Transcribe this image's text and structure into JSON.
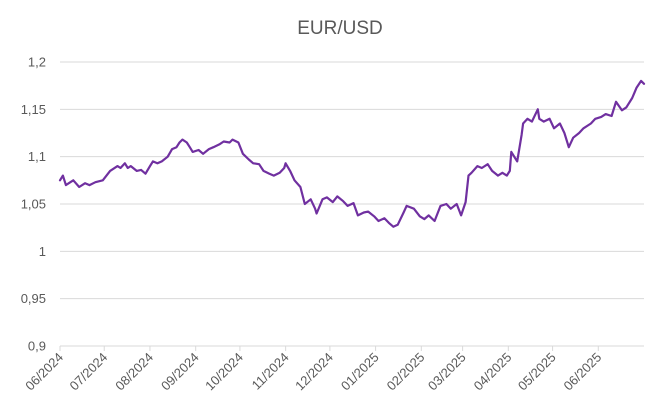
{
  "chart_data": {
    "type": "line",
    "title": "EUR/USD",
    "xlabel": "",
    "ylabel": "",
    "ylim": [
      0.9,
      1.2
    ],
    "yticks": [
      0.9,
      0.95,
      1.0,
      1.05,
      1.1,
      1.15,
      1.2
    ],
    "ytick_labels": [
      "0,9",
      "0,95",
      "1",
      "1,05",
      "1,1",
      "1,15",
      "1,2"
    ],
    "xticks": [
      "2024-06-01",
      "2024-07-01",
      "2024-08-01",
      "2024-09-01",
      "2024-10-01",
      "2024-11-01",
      "2024-12-01",
      "2025-01-01",
      "2025-02-01",
      "2025-03-01",
      "2025-04-01",
      "2025-05-01",
      "2025-06-01"
    ],
    "xtick_labels": [
      "06/2024",
      "07/2024",
      "08/2024",
      "09/2024",
      "10/2024",
      "11/2024",
      "12/2024",
      "01/2025",
      "02/2025",
      "03/2025",
      "04/2025",
      "05/2025",
      "06/2025"
    ],
    "grid": true,
    "legend": "none",
    "color": "#7030a0",
    "x": [
      "2024-06-01",
      "2024-06-03",
      "2024-06-05",
      "2024-06-10",
      "2024-06-14",
      "2024-06-18",
      "2024-06-21",
      "2024-06-25",
      "2024-06-30",
      "2024-07-05",
      "2024-07-10",
      "2024-07-12",
      "2024-07-15",
      "2024-07-17",
      "2024-07-19",
      "2024-07-23",
      "2024-07-26",
      "2024-07-29",
      "2024-08-01",
      "2024-08-03",
      "2024-08-06",
      "2024-08-09",
      "2024-08-13",
      "2024-08-16",
      "2024-08-19",
      "2024-08-21",
      "2024-08-23",
      "2024-08-26",
      "2024-08-28",
      "2024-08-30",
      "2024-09-03",
      "2024-09-06",
      "2024-09-10",
      "2024-09-13",
      "2024-09-17",
      "2024-09-20",
      "2024-09-24",
      "2024-09-26",
      "2024-09-30",
      "2024-10-03",
      "2024-10-07",
      "2024-10-10",
      "2024-10-14",
      "2024-10-17",
      "2024-10-21",
      "2024-10-24",
      "2024-10-28",
      "2024-10-31",
      "2024-11-01",
      "2024-11-04",
      "2024-11-07",
      "2024-11-11",
      "2024-11-14",
      "2024-11-18",
      "2024-11-21",
      "2024-11-22",
      "2024-11-26",
      "2024-11-29",
      "2024-12-03",
      "2024-12-06",
      "2024-12-10",
      "2024-12-13",
      "2024-12-17",
      "2024-12-20",
      "2024-12-24",
      "2024-12-27",
      "2024-12-31",
      "2025-01-03",
      "2025-01-07",
      "2025-01-10",
      "2025-01-13",
      "2025-01-16",
      "2025-01-20",
      "2025-01-22",
      "2025-01-27",
      "2025-01-31",
      "2025-02-03",
      "2025-02-06",
      "2025-02-10",
      "2025-02-14",
      "2025-02-18",
      "2025-02-21",
      "2025-02-25",
      "2025-02-28",
      "2025-03-03",
      "2025-03-05",
      "2025-03-07",
      "2025-03-11",
      "2025-03-14",
      "2025-03-18",
      "2025-03-21",
      "2025-03-25",
      "2025-03-28",
      "2025-03-31",
      "2025-04-02",
      "2025-04-03",
      "2025-04-07",
      "2025-04-10",
      "2025-04-11",
      "2025-04-14",
      "2025-04-17",
      "2025-04-21",
      "2025-04-22",
      "2025-04-25",
      "2025-04-29",
      "2025-05-02",
      "2025-05-06",
      "2025-05-09",
      "2025-05-12",
      "2025-05-15",
      "2025-05-19",
      "2025-05-22",
      "2025-05-27",
      "2025-05-30",
      "2025-06-03",
      "2025-06-06",
      "2025-06-10",
      "2025-06-13",
      "2025-06-17",
      "2025-06-20",
      "2025-06-24",
      "2025-06-27",
      "2025-06-30",
      "2025-07-02"
    ],
    "values": [
      1.075,
      1.08,
      1.07,
      1.075,
      1.068,
      1.072,
      1.07,
      1.073,
      1.075,
      1.085,
      1.09,
      1.088,
      1.093,
      1.088,
      1.09,
      1.085,
      1.086,
      1.082,
      1.09,
      1.095,
      1.093,
      1.095,
      1.1,
      1.108,
      1.11,
      1.115,
      1.118,
      1.115,
      1.11,
      1.105,
      1.107,
      1.103,
      1.108,
      1.11,
      1.113,
      1.116,
      1.115,
      1.118,
      1.115,
      1.103,
      1.097,
      1.093,
      1.092,
      1.085,
      1.082,
      1.08,
      1.083,
      1.088,
      1.093,
      1.085,
      1.075,
      1.068,
      1.05,
      1.055,
      1.045,
      1.04,
      1.055,
      1.057,
      1.052,
      1.058,
      1.053,
      1.048,
      1.051,
      1.038,
      1.041,
      1.042,
      1.037,
      1.032,
      1.035,
      1.03,
      1.026,
      1.028,
      1.041,
      1.048,
      1.045,
      1.037,
      1.034,
      1.038,
      1.032,
      1.048,
      1.05,
      1.045,
      1.05,
      1.038,
      1.052,
      1.08,
      1.083,
      1.09,
      1.088,
      1.092,
      1.085,
      1.08,
      1.083,
      1.08,
      1.085,
      1.105,
      1.095,
      1.123,
      1.135,
      1.14,
      1.137,
      1.15,
      1.14,
      1.137,
      1.14,
      1.13,
      1.135,
      1.125,
      1.11,
      1.12,
      1.125,
      1.13,
      1.135,
      1.14,
      1.142,
      1.145,
      1.143,
      1.158,
      1.149,
      1.152,
      1.162,
      1.173,
      1.18,
      1.177
    ]
  }
}
